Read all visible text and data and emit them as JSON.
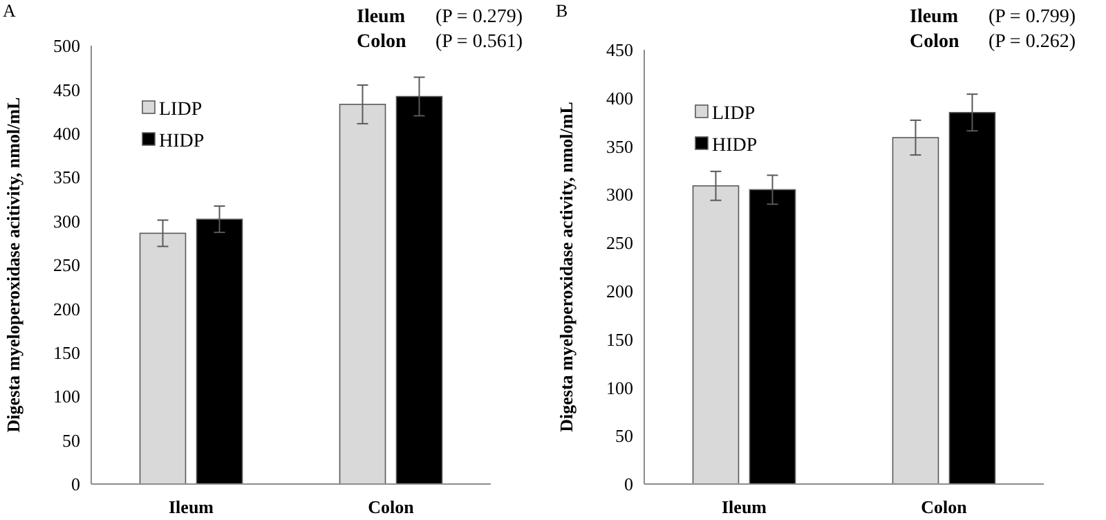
{
  "chart_data": [
    {
      "type": "bar",
      "title": "A",
      "ylabel": "Digesta myeloperoxidase acitivity, nmol/mL",
      "categories": [
        "Ileum",
        "Colon"
      ],
      "series": [
        {
          "name": "LIDP",
          "color": "#d9d9d9",
          "values": [
            286,
            433
          ],
          "errors": [
            15,
            22
          ]
        },
        {
          "name": "HIDP",
          "color": "#000000",
          "values": [
            302,
            442
          ],
          "errors": [
            15,
            22
          ]
        }
      ],
      "ylim": [
        0,
        500
      ],
      "yticks": [
        0,
        50,
        100,
        150,
        200,
        250,
        300,
        350,
        400,
        450,
        500
      ],
      "grid": false,
      "legend": "top left",
      "annotations": [
        "Ileum",
        "(P = 0.279)",
        "Colon",
        "(P = 0.561)"
      ]
    },
    {
      "type": "bar",
      "title": "B",
      "ylabel": "Digesta myeloperoxidase activity, nmol/mL",
      "categories": [
        "Ileum",
        "Colon"
      ],
      "series": [
        {
          "name": "LIDP",
          "color": "#d9d9d9",
          "values": [
            309,
            359
          ],
          "errors": [
            15,
            18
          ]
        },
        {
          "name": "HIDP",
          "color": "#000000",
          "values": [
            305,
            385
          ],
          "errors": [
            15,
            19
          ]
        }
      ],
      "ylim": [
        0,
        450
      ],
      "yticks": [
        0,
        50,
        100,
        150,
        200,
        250,
        300,
        350,
        400,
        450
      ],
      "grid": false,
      "legend": "top left",
      "annotations": [
        "Ileum",
        "(P = 0.799)",
        "Colon",
        "(P = 0.262)"
      ]
    }
  ]
}
